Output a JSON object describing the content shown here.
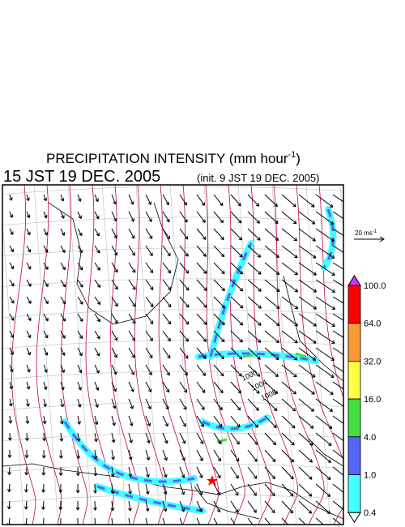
{
  "header": {
    "title": "PRECIPITATION INTENSITY (mm hour",
    "title_exponent": "-1",
    "title_close": ")",
    "valid_time": "15 JST 19 DEC. 2005",
    "init_time": "(init. 9 JST 19 DEC. 2005)"
  },
  "wind_reference": {
    "label": "20 ms",
    "exponent": "-1"
  },
  "contour_labels": [
    "1000",
    "1004",
    "1008"
  ],
  "colorbar": {
    "levels": [
      "100.0",
      "64.0",
      "32.0",
      "16.0",
      "4.0",
      "1.0",
      "0.4"
    ],
    "colors": [
      "#ff0000",
      "#ff9933",
      "#ffff44",
      "#44dd44",
      "#5566ff",
      "#44ffff"
    ],
    "over_color": "#cc33ff",
    "under_color": "#ffffff"
  }
}
